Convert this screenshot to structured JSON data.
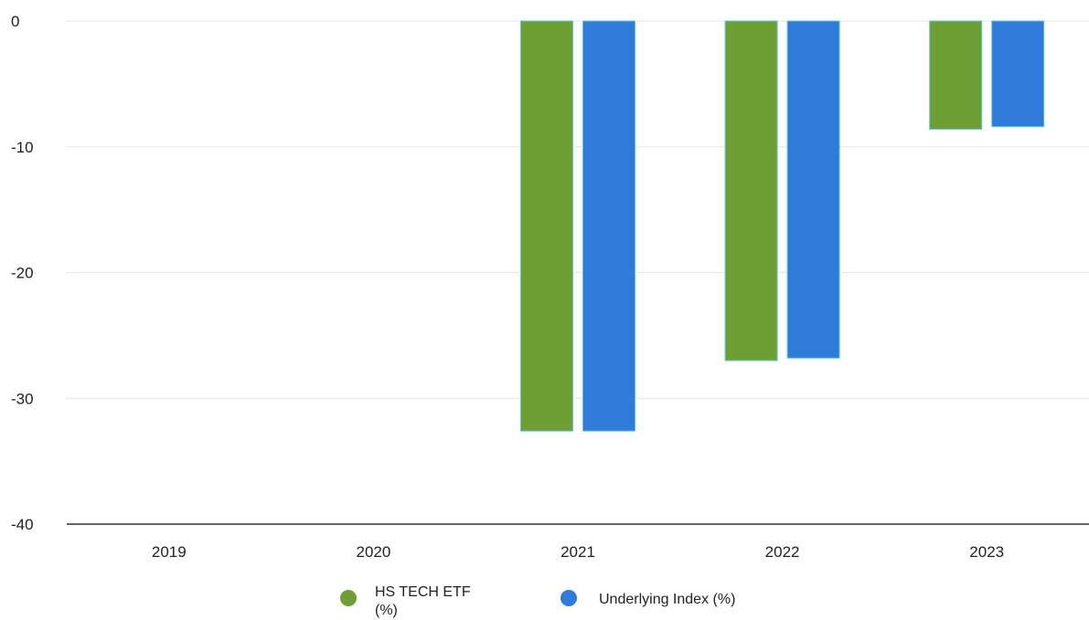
{
  "chart_data": {
    "type": "bar",
    "categories": [
      "2019",
      "2020",
      "2021",
      "2022",
      "2023"
    ],
    "series": [
      {
        "name": "HS TECH ETF (%)",
        "color": "#6f9e35",
        "values": [
          null,
          null,
          -32.6,
          -27.0,
          -8.6
        ]
      },
      {
        "name": "Underlying Index (%)",
        "color": "#2f7bd9",
        "values": [
          null,
          null,
          -32.6,
          -26.8,
          -8.4
        ]
      }
    ],
    "y_ticks": [
      "0",
      "-10",
      "-20",
      "-30",
      "-40"
    ],
    "ylim": [
      -40,
      0
    ],
    "grid": true,
    "legend_position": "bottom"
  }
}
